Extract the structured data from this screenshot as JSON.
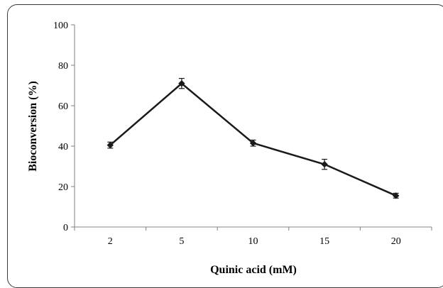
{
  "chart_data": {
    "type": "line",
    "title": "",
    "xlabel": "Quinic acid (mM)",
    "ylabel": "Bioconversion (%)",
    "categories": [
      "2",
      "5",
      "10",
      "15",
      "20"
    ],
    "series": [
      {
        "values": [
          40.5,
          71,
          41.5,
          31,
          15.5
        ],
        "errors": [
          1.5,
          2.5,
          1.5,
          2.5,
          1.2
        ],
        "color": "#1a1a1a",
        "marker": "diamond"
      }
    ],
    "ylim": [
      0,
      100
    ],
    "yticks": [
      0,
      20,
      40,
      60,
      80,
      100
    ],
    "grid": false,
    "legend": "none"
  }
}
